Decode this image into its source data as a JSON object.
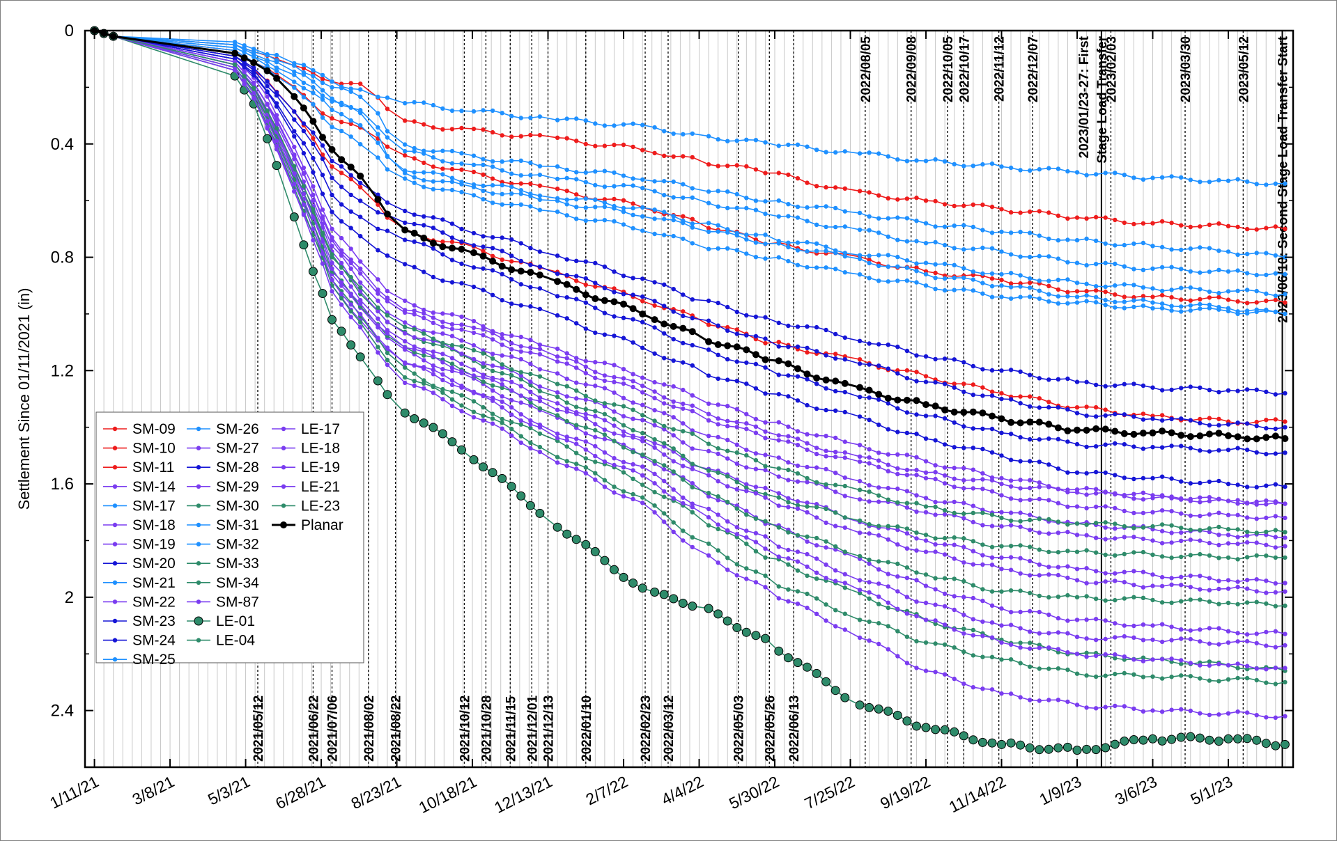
{
  "chart_data": {
    "type": "line",
    "title": "",
    "xlabel": "",
    "ylabel": "Settlement Since 01/11/2021 (in)",
    "xlim": [
      "2021-01-04",
      "2023-06-18"
    ],
    "ylim": [
      0,
      2.6
    ],
    "y_inverted": true,
    "x_tick_labels": [
      "1/11/21",
      "3/8/21",
      "5/3/21",
      "6/28/21",
      "8/23/21",
      "10/18/21",
      "12/13/21",
      "2/7/22",
      "4/4/22",
      "5/30/22",
      "7/25/22",
      "9/19/22",
      "11/14/22",
      "1/9/23",
      "3/6/23",
      "5/1/23"
    ],
    "x_tick_dates": [
      "2021-01-11",
      "2021-03-08",
      "2021-05-03",
      "2021-06-28",
      "2021-08-23",
      "2021-10-18",
      "2021-12-13",
      "2022-02-07",
      "2022-04-04",
      "2022-05-30",
      "2022-07-25",
      "2022-09-19",
      "2022-11-14",
      "2023-01-09",
      "2023-03-06",
      "2023-05-01"
    ],
    "y_tick_labels": [
      "0",
      "0.4",
      "0.8",
      "1.2",
      "1.6",
      "2",
      "2.4"
    ],
    "y_tick_values": [
      0,
      0.4,
      0.8,
      1.2,
      1.6,
      2.0,
      2.4
    ],
    "grid": "vertical-minor",
    "legend_position": "bottom-left",
    "event_lines": [
      {
        "date": "2021-05-12",
        "label": "2021/05/12",
        "label_pos": "bottom"
      },
      {
        "date": "2021-06-22",
        "label": "2021/06/22",
        "label_pos": "bottom"
      },
      {
        "date": "2021-07-06",
        "label": "2021/07/06",
        "label_pos": "bottom"
      },
      {
        "date": "2021-08-02",
        "label": "2021/08/02",
        "label_pos": "bottom"
      },
      {
        "date": "2021-08-22",
        "label": "2021/08/22",
        "label_pos": "bottom"
      },
      {
        "date": "2021-10-12",
        "label": "2021/10/12",
        "label_pos": "bottom"
      },
      {
        "date": "2021-10-28",
        "label": "2021/10/28",
        "label_pos": "bottom"
      },
      {
        "date": "2021-11-15",
        "label": "2021/11/15",
        "label_pos": "bottom"
      },
      {
        "date": "2021-12-01",
        "label": "2021/12/01",
        "label_pos": "bottom"
      },
      {
        "date": "2021-12-13",
        "label": "2021/12/13",
        "label_pos": "bottom"
      },
      {
        "date": "2022-01-10",
        "label": "2022/01/10",
        "label_pos": "bottom"
      },
      {
        "date": "2022-02-23",
        "label": "2022/02/23",
        "label_pos": "bottom"
      },
      {
        "date": "2022-03-12",
        "label": "2022/03/12",
        "label_pos": "bottom"
      },
      {
        "date": "2022-05-03",
        "label": "2022/05/03",
        "label_pos": "bottom"
      },
      {
        "date": "2022-05-26",
        "label": "2022/05/26",
        "label_pos": "bottom"
      },
      {
        "date": "2022-06-13",
        "label": "2022/06/13",
        "label_pos": "bottom"
      },
      {
        "date": "2022-08-05",
        "label": "2022/08/05",
        "label_pos": "top"
      },
      {
        "date": "2022-09-08",
        "label": "2022/09/08",
        "label_pos": "top"
      },
      {
        "date": "2022-10-05",
        "label": "2022/10/05",
        "label_pos": "top"
      },
      {
        "date": "2022-10-17",
        "label": "2022/10/17",
        "label_pos": "top"
      },
      {
        "date": "2022-11-12",
        "label": "2022/11/12",
        "label_pos": "top"
      },
      {
        "date": "2022-12-07",
        "label": "2022/12/07",
        "label_pos": "top"
      },
      {
        "date": "2023-01-27",
        "label": "2023/01/23-27: First",
        "label2": "Stage Load Transfer",
        "label_pos": "top",
        "solid": true
      },
      {
        "date": "2023-02-03",
        "label": "2023/02/03",
        "label_pos": "top"
      },
      {
        "date": "2023-03-30",
        "label": "2023/03/30",
        "label_pos": "top"
      },
      {
        "date": "2023-05-12",
        "label": "2023/05/12",
        "label_pos": "top"
      },
      {
        "date": "2023-06-10",
        "label": "2023/06/10: Second Stage Load Transfer Start",
        "label_pos": "top",
        "solid": true
      }
    ],
    "colors": {
      "red": "#ee1c1c",
      "lightblue": "#1e90ff",
      "blue": "#1515d6",
      "purple": "#7a3cf0",
      "green": "#2e8b6a",
      "planar": "#000000"
    },
    "x": [
      "2021-01-11",
      "2021-01-18",
      "2021-01-25",
      "2021-04-25",
      "2021-05-12",
      "2021-06-01",
      "2021-06-22",
      "2021-07-06",
      "2021-08-02",
      "2021-08-22",
      "2021-10-12",
      "2021-12-13",
      "2022-02-23",
      "2022-04-04",
      "2022-05-26",
      "2022-07-25",
      "2022-09-19",
      "2022-11-14",
      "2023-01-09",
      "2023-03-06",
      "2023-05-01",
      "2023-06-12"
    ],
    "series": [
      {
        "name": "SM-09",
        "color": "red",
        "values": [
          0,
          0.01,
          0.02,
          0.05,
          0.08,
          0.12,
          0.15,
          0.18,
          0.2,
          0.32,
          0.35,
          0.38,
          0.42,
          0.46,
          0.5,
          0.57,
          0.6,
          0.63,
          0.66,
          0.68,
          0.69,
          0.7
        ]
      },
      {
        "name": "SM-10",
        "color": "red",
        "values": [
          0,
          0.01,
          0.02,
          0.07,
          0.12,
          0.18,
          0.26,
          0.31,
          0.36,
          0.44,
          0.5,
          0.56,
          0.62,
          0.68,
          0.75,
          0.8,
          0.85,
          0.88,
          0.92,
          0.94,
          0.95,
          0.96
        ]
      },
      {
        "name": "SM-11",
        "color": "red",
        "values": [
          0,
          0.01,
          0.02,
          0.09,
          0.15,
          0.25,
          0.38,
          0.48,
          0.58,
          0.7,
          0.76,
          0.85,
          0.95,
          1.02,
          1.1,
          1.16,
          1.22,
          1.28,
          1.33,
          1.36,
          1.38,
          1.38
        ]
      },
      {
        "name": "SM-14",
        "color": "purple",
        "values": [
          0,
          0.01,
          0.02,
          0.1,
          0.18,
          0.35,
          0.55,
          0.7,
          0.85,
          0.95,
          1.02,
          1.12,
          1.22,
          1.3,
          1.38,
          1.46,
          1.52,
          1.58,
          1.62,
          1.64,
          1.66,
          1.67
        ]
      },
      {
        "name": "SM-17",
        "color": "lightblue",
        "values": [
          0,
          0.01,
          0.02,
          0.06,
          0.1,
          0.14,
          0.2,
          0.25,
          0.3,
          0.5,
          0.55,
          0.6,
          0.65,
          0.7,
          0.75,
          0.8,
          0.86,
          0.9,
          0.94,
          0.96,
          0.98,
          1.0
        ]
      },
      {
        "name": "SM-18",
        "color": "purple",
        "values": [
          0,
          0.01,
          0.02,
          0.11,
          0.2,
          0.38,
          0.6,
          0.76,
          0.92,
          1.02,
          1.1,
          1.2,
          1.32,
          1.42,
          1.5,
          1.58,
          1.65,
          1.7,
          1.74,
          1.76,
          1.78,
          1.79
        ]
      },
      {
        "name": "SM-19",
        "color": "purple",
        "values": [
          0,
          0.01,
          0.02,
          0.12,
          0.22,
          0.4,
          0.65,
          0.82,
          0.98,
          1.08,
          1.18,
          1.3,
          1.44,
          1.54,
          1.62,
          1.72,
          1.8,
          1.86,
          1.9,
          1.92,
          1.94,
          1.95
        ]
      },
      {
        "name": "SM-20",
        "color": "blue",
        "values": [
          0,
          0.01,
          0.02,
          0.09,
          0.14,
          0.24,
          0.36,
          0.46,
          0.55,
          0.62,
          0.7,
          0.78,
          0.88,
          0.95,
          1.02,
          1.08,
          1.15,
          1.2,
          1.24,
          1.26,
          1.27,
          1.28
        ]
      },
      {
        "name": "SM-21",
        "color": "lightblue",
        "values": [
          0,
          0.01,
          0.02,
          0.06,
          0.1,
          0.15,
          0.22,
          0.28,
          0.34,
          0.48,
          0.53,
          0.58,
          0.63,
          0.68,
          0.73,
          0.78,
          0.82,
          0.86,
          0.89,
          0.91,
          0.92,
          0.93
        ]
      },
      {
        "name": "SM-22",
        "color": "purple",
        "values": [
          0,
          0.01,
          0.02,
          0.14,
          0.26,
          0.48,
          0.72,
          0.9,
          1.05,
          1.15,
          1.25,
          1.4,
          1.55,
          1.68,
          1.8,
          1.92,
          2.02,
          2.1,
          2.14,
          2.15,
          2.16,
          2.17
        ]
      },
      {
        "name": "SM-23",
        "color": "blue",
        "values": [
          0,
          0.01,
          0.02,
          0.09,
          0.15,
          0.26,
          0.4,
          0.52,
          0.62,
          0.66,
          0.74,
          0.84,
          0.95,
          1.02,
          1.1,
          1.16,
          1.24,
          1.3,
          1.35,
          1.37,
          1.39,
          1.4
        ]
      },
      {
        "name": "SM-24",
        "color": "blue",
        "values": [
          0,
          0.01,
          0.02,
          0.1,
          0.16,
          0.3,
          0.45,
          0.58,
          0.68,
          0.72,
          0.82,
          0.92,
          1.04,
          1.12,
          1.2,
          1.28,
          1.36,
          1.42,
          1.46,
          1.47,
          1.48,
          1.49
        ]
      },
      {
        "name": "SM-25",
        "color": "lightblue",
        "values": [
          0,
          0.01,
          0.02,
          0.04,
          0.07,
          0.1,
          0.14,
          0.18,
          0.22,
          0.25,
          0.28,
          0.31,
          0.34,
          0.37,
          0.4,
          0.43,
          0.46,
          0.48,
          0.5,
          0.52,
          0.53,
          0.54
        ]
      },
      {
        "name": "SM-26",
        "color": "lightblue",
        "values": [
          0,
          0.01,
          0.02,
          0.05,
          0.09,
          0.13,
          0.18,
          0.24,
          0.3,
          0.42,
          0.47,
          0.52,
          0.56,
          0.6,
          0.65,
          0.7,
          0.75,
          0.78,
          0.82,
          0.84,
          0.85,
          0.86
        ]
      },
      {
        "name": "SM-27",
        "color": "purple",
        "values": [
          0,
          0.01,
          0.02,
          0.11,
          0.2,
          0.38,
          0.58,
          0.74,
          0.9,
          0.99,
          1.06,
          1.16,
          1.28,
          1.36,
          1.44,
          1.52,
          1.58,
          1.64,
          1.68,
          1.7,
          1.71,
          1.72
        ]
      },
      {
        "name": "SM-28",
        "color": "blue",
        "values": [
          0,
          0.01,
          0.02,
          0.1,
          0.17,
          0.32,
          0.5,
          0.64,
          0.76,
          0.82,
          0.9,
          1.0,
          1.12,
          1.2,
          1.28,
          1.36,
          1.44,
          1.5,
          1.56,
          1.58,
          1.6,
          1.61
        ]
      },
      {
        "name": "SM-29",
        "color": "purple",
        "values": [
          0,
          0.01,
          0.02,
          0.13,
          0.24,
          0.44,
          0.68,
          0.86,
          1.02,
          1.12,
          1.22,
          1.36,
          1.5,
          1.62,
          1.74,
          1.86,
          1.96,
          2.04,
          2.08,
          2.1,
          2.12,
          2.13
        ]
      },
      {
        "name": "SM-30",
        "color": "green",
        "values": [
          0,
          0.01,
          0.02,
          0.13,
          0.24,
          0.45,
          0.7,
          0.88,
          1.05,
          1.18,
          1.3,
          1.44,
          1.6,
          1.72,
          1.86,
          1.98,
          2.08,
          2.15,
          2.2,
          2.22,
          2.24,
          2.26
        ]
      },
      {
        "name": "SM-31",
        "color": "lightblue",
        "values": [
          0,
          0.01,
          0.02,
          0.07,
          0.12,
          0.18,
          0.26,
          0.34,
          0.42,
          0.52,
          0.58,
          0.64,
          0.7,
          0.76,
          0.8,
          0.86,
          0.9,
          0.94,
          0.96,
          0.98,
          0.99,
          1.0
        ]
      },
      {
        "name": "SM-32",
        "color": "lightblue",
        "values": [
          0,
          0.01,
          0.02,
          0.05,
          0.08,
          0.11,
          0.16,
          0.2,
          0.24,
          0.4,
          0.44,
          0.48,
          0.52,
          0.56,
          0.6,
          0.64,
          0.68,
          0.71,
          0.74,
          0.76,
          0.78,
          0.8
        ]
      },
      {
        "name": "SM-33",
        "color": "green",
        "values": [
          0,
          0.01,
          0.02,
          0.12,
          0.22,
          0.42,
          0.64,
          0.8,
          0.96,
          1.05,
          1.15,
          1.28,
          1.42,
          1.54,
          1.64,
          1.72,
          1.78,
          1.82,
          1.84,
          1.85,
          1.86,
          1.86
        ]
      },
      {
        "name": "SM-34",
        "color": "green",
        "values": [
          0,
          0.01,
          0.02,
          0.13,
          0.23,
          0.44,
          0.68,
          0.85,
          1.0,
          1.1,
          1.2,
          1.34,
          1.5,
          1.62,
          1.74,
          1.84,
          1.92,
          1.98,
          2.0,
          2.01,
          2.02,
          2.03
        ]
      },
      {
        "name": "SM-87",
        "color": "purple",
        "values": [
          0,
          0.01,
          0.02,
          0.12,
          0.21,
          0.4,
          0.62,
          0.78,
          0.95,
          1.05,
          1.14,
          1.26,
          1.38,
          1.48,
          1.56,
          1.64,
          1.7,
          1.75,
          1.78,
          1.8,
          1.81,
          1.82
        ]
      },
      {
        "name": "LE-01",
        "color": "green",
        "values": [
          0,
          0.01,
          0.02,
          0.16,
          0.28,
          0.55,
          0.85,
          1.02,
          1.18,
          1.32,
          1.48,
          1.72,
          1.98,
          2.03,
          2.16,
          2.36,
          2.46,
          2.52,
          2.54,
          2.5,
          2.5,
          2.52
        ]
      },
      {
        "name": "LE-04",
        "color": "green",
        "values": [
          0,
          0.01,
          0.02,
          0.14,
          0.25,
          0.46,
          0.72,
          0.9,
          1.06,
          1.2,
          1.32,
          1.48,
          1.66,
          1.8,
          1.94,
          2.06,
          2.16,
          2.22,
          2.27,
          2.28,
          2.29,
          2.3
        ]
      },
      {
        "name": "LE-17",
        "color": "purple",
        "values": [
          0,
          0.01,
          0.02,
          0.14,
          0.26,
          0.47,
          0.74,
          0.92,
          1.08,
          1.22,
          1.34,
          1.5,
          1.68,
          1.84,
          1.98,
          2.12,
          2.26,
          2.34,
          2.38,
          2.4,
          2.41,
          2.42
        ]
      },
      {
        "name": "LE-18",
        "color": "purple",
        "values": [
          0,
          0.01,
          0.02,
          0.12,
          0.22,
          0.42,
          0.66,
          0.84,
          1.0,
          1.1,
          1.2,
          1.32,
          1.46,
          1.56,
          1.66,
          1.76,
          1.84,
          1.9,
          1.94,
          1.96,
          1.97,
          1.98
        ]
      },
      {
        "name": "LE-19",
        "color": "purple",
        "values": [
          0,
          0.01,
          0.02,
          0.13,
          0.24,
          0.46,
          0.7,
          0.88,
          1.04,
          1.16,
          1.26,
          1.42,
          1.58,
          1.7,
          1.84,
          1.96,
          2.08,
          2.16,
          2.2,
          2.22,
          2.24,
          2.25
        ]
      },
      {
        "name": "LE-21",
        "color": "purple",
        "values": [
          0,
          0.01,
          0.02,
          0.11,
          0.2,
          0.37,
          0.58,
          0.73,
          0.88,
          0.98,
          1.04,
          1.14,
          1.26,
          1.34,
          1.42,
          1.5,
          1.56,
          1.6,
          1.63,
          1.65,
          1.66,
          1.67
        ]
      },
      {
        "name": "LE-23",
        "color": "green",
        "values": [
          0,
          0.01,
          0.02,
          0.12,
          0.22,
          0.41,
          0.63,
          0.79,
          0.95,
          1.04,
          1.12,
          1.24,
          1.36,
          1.44,
          1.54,
          1.62,
          1.68,
          1.72,
          1.74,
          1.75,
          1.76,
          1.77
        ]
      },
      {
        "name": "Planar",
        "color": "planar",
        "values": [
          0,
          0.01,
          0.02,
          0.08,
          0.12,
          0.2,
          0.32,
          0.42,
          0.55,
          0.7,
          0.78,
          0.88,
          1.0,
          1.08,
          1.16,
          1.26,
          1.32,
          1.37,
          1.41,
          1.42,
          1.43,
          1.44
        ]
      }
    ]
  }
}
